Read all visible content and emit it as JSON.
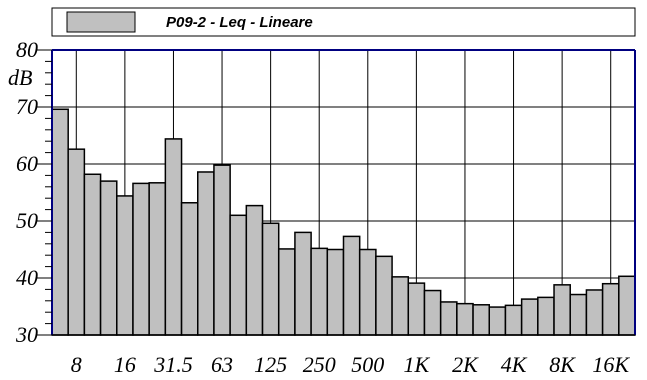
{
  "chart_data": {
    "type": "bar",
    "title": "P09-2 - Leq - Lineare",
    "ylabel": "dB",
    "xlabel": "",
    "ylim": [
      30,
      80
    ],
    "grid": true,
    "legend": "top",
    "y_ticks": [
      "30",
      "40",
      "50",
      "60",
      "70",
      "80"
    ],
    "x_tick_labels": [
      "8",
      "16",
      "31.5",
      "63",
      "125",
      "250",
      "500",
      "1K",
      "2K",
      "4K",
      "8K",
      "16K"
    ],
    "series": [
      {
        "name": "P09-2 - Leq - Lineare",
        "color": "#c0c0c0",
        "values": [
          69.6,
          62.6,
          58.2,
          57.0,
          54.4,
          56.6,
          56.7,
          64.4,
          53.2,
          58.6,
          59.8,
          51.0,
          52.7,
          49.6,
          45.1,
          48.0,
          45.2,
          45.0,
          47.3,
          45.0,
          43.8,
          40.2,
          39.1,
          37.8,
          35.8,
          35.5,
          35.3,
          34.9,
          35.2,
          36.3,
          36.6,
          38.8,
          37.1,
          37.9,
          39.0,
          40.3
        ]
      }
    ]
  }
}
